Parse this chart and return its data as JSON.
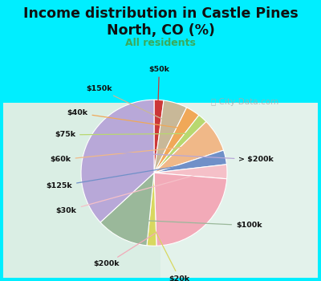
{
  "title": "Income distribution in Castle Pines\nNorth, CO (%)",
  "subtitle": "All residents",
  "title_color": "#111111",
  "subtitle_color": "#3aaa5c",
  "bg_color": "#00eeff",
  "chart_bg_left": "#c8e8d0",
  "chart_bg_right": "#e8f4f0",
  "labels": [
    "> $200k",
    "$100k",
    "$20k",
    "$200k",
    "$30k",
    "$125k",
    "$60k",
    "$75k",
    "$40k",
    "$150k",
    "$50k"
  ],
  "values": [
    35,
    11,
    2,
    22,
    3,
    3,
    7,
    2,
    3,
    5,
    2
  ],
  "colors": [
    "#b8a8d8",
    "#9ab89a",
    "#d8d860",
    "#f2aab8",
    "#f5c0c8",
    "#7090c8",
    "#f0b888",
    "#b8d870",
    "#f0a858",
    "#c8b898",
    "#cc3838"
  ],
  "watermark": "City-Data.com"
}
